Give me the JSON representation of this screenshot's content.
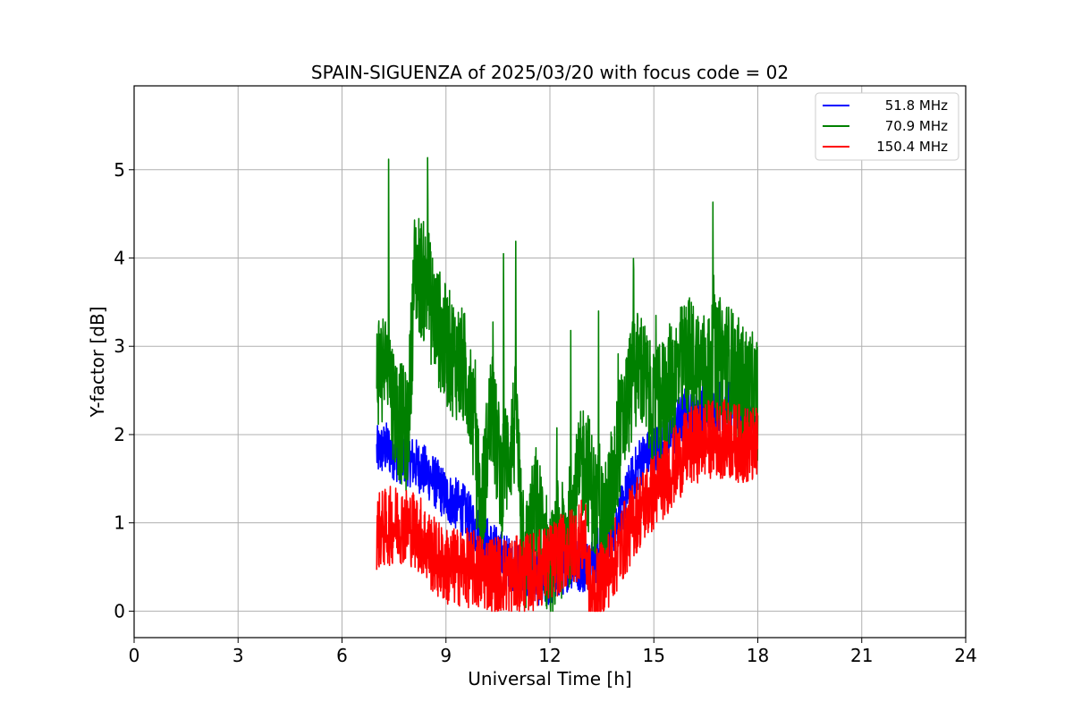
{
  "chart_data": {
    "type": "line",
    "title": "SPAIN-SIGUENZA of 2025/03/20 with focus code = 02",
    "xlabel": "Universal Time [h]",
    "ylabel": "Y-factor [dB]",
    "xlim": [
      0,
      24
    ],
    "ylim": [
      -0.3,
      5.95
    ],
    "xticks": [
      0,
      3,
      6,
      9,
      12,
      15,
      18,
      21,
      24
    ],
    "yticks": [
      0,
      1,
      2,
      3,
      4,
      5
    ],
    "grid": true,
    "legend_position": "top-right",
    "series": [
      {
        "name": "51.8 MHz",
        "color": "#0000ff",
        "band": 0.3,
        "x": [
          7.0,
          7.3,
          7.6,
          8.0,
          8.5,
          9.0,
          9.5,
          10.0,
          10.5,
          11.0,
          11.5,
          11.8,
          12.0,
          12.3,
          12.6,
          13.0,
          13.3,
          13.6,
          14.0,
          14.3,
          14.6,
          15.0,
          15.5,
          16.0,
          16.5,
          17.0,
          17.5,
          18.0
        ],
        "y": [
          1.8,
          1.85,
          1.75,
          1.7,
          1.55,
          1.3,
          1.15,
          0.85,
          0.65,
          0.5,
          0.45,
          0.3,
          0.35,
          0.45,
          0.55,
          0.5,
          0.6,
          0.85,
          1.05,
          1.4,
          1.7,
          1.8,
          2.0,
          2.3,
          2.25,
          2.35,
          2.3,
          2.0
        ]
      },
      {
        "name": "70.9 MHz",
        "color": "#008000",
        "band": 0.7,
        "x": [
          7.0,
          7.3,
          7.6,
          7.9,
          8.1,
          8.4,
          8.7,
          9.0,
          9.4,
          9.7,
          10.0,
          10.3,
          10.6,
          11.0,
          11.3,
          11.6,
          12.0,
          12.3,
          12.6,
          13.0,
          13.3,
          13.6,
          14.0,
          14.3,
          14.6,
          15.0,
          15.5,
          16.0,
          16.5,
          17.0,
          17.5,
          18.0
        ],
        "y": [
          2.8,
          2.7,
          2.2,
          2.0,
          3.9,
          3.7,
          3.3,
          3.0,
          2.8,
          2.6,
          1.0,
          2.3,
          1.5,
          2.1,
          0.6,
          1.2,
          0.5,
          0.7,
          1.0,
          1.8,
          1.2,
          1.0,
          1.9,
          2.5,
          2.8,
          2.2,
          2.6,
          2.9,
          2.7,
          2.9,
          2.6,
          2.4
        ]
      },
      {
        "name": "150.4 MHz",
        "color": "#ff0000",
        "band": 0.45,
        "x": [
          7.0,
          7.3,
          7.6,
          8.0,
          8.3,
          8.6,
          9.0,
          9.5,
          10.0,
          10.5,
          11.0,
          11.5,
          12.0,
          12.5,
          13.0,
          13.2,
          13.5,
          14.0,
          14.5,
          15.0,
          15.5,
          16.0,
          16.5,
          17.0,
          17.5,
          18.0
        ],
        "y": [
          0.9,
          0.95,
          1.0,
          0.95,
          0.85,
          0.65,
          0.5,
          0.5,
          0.45,
          0.42,
          0.4,
          0.45,
          0.55,
          0.7,
          0.85,
          0.15,
          0.35,
          0.7,
          1.1,
          1.35,
          1.6,
          1.85,
          1.95,
          1.95,
          1.9,
          1.85
        ]
      }
    ]
  }
}
